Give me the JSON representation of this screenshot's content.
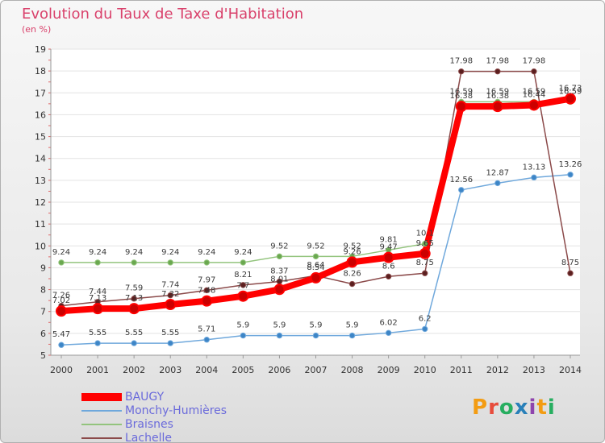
{
  "title": "Evolution du Taux de Taxe d'Habitation",
  "unit_label": "(en %)",
  "logo": {
    "text": "Proxiti",
    "colors": [
      "#f39c12",
      "#e74c3c",
      "#27ae60",
      "#2980b9",
      "#8e44ad",
      "#f39c12",
      "#27ae60"
    ]
  },
  "chart_data": {
    "type": "line",
    "title": "Evolution du Taux de Taxe d'Habitation",
    "ylabel": "(en %)",
    "xlabel": "",
    "ylim": [
      5,
      19
    ],
    "yticks": [
      5,
      6,
      7,
      8,
      9,
      10,
      11,
      12,
      13,
      14,
      15,
      16,
      17,
      18,
      19
    ],
    "x": [
      "2000",
      "2001",
      "2002",
      "2003",
      "2004",
      "2005",
      "2006",
      "2007",
      "2008",
      "2009",
      "2010",
      "2011",
      "2012",
      "2013",
      "2014"
    ],
    "grid": "horizontal",
    "legend_position": "bottom-left",
    "series": [
      {
        "name": "BAUGY",
        "color": "#ff0000",
        "marker_color": "#cc0000",
        "values": [
          7.02,
          7.13,
          7.13,
          7.32,
          7.48,
          7.7,
          8.01,
          8.54,
          9.26,
          9.47,
          9.65,
          16.38,
          16.38,
          16.44,
          16.73
        ],
        "labels": [
          "7.02",
          "7.13",
          "7.13",
          "7.32",
          "7.48",
          "7.7",
          "8.01",
          "8.54",
          "9.26",
          "9.47",
          "9.65",
          "16.38",
          "16.38",
          "16.44",
          "16.73"
        ]
      },
      {
        "name": "Monchy-Humières",
        "color": "#6fa8dc",
        "marker_color": "#3d85c6",
        "values": [
          5.47,
          5.55,
          5.55,
          5.55,
          5.71,
          5.9,
          5.9,
          5.9,
          5.9,
          6.02,
          6.2,
          12.56,
          12.87,
          13.13,
          13.26
        ],
        "labels": [
          "5.47",
          "5.55",
          "5.55",
          "5.55",
          "5.71",
          "5.9",
          "5.9",
          "5.9",
          "5.9",
          "6.02",
          "6.2",
          "12.56",
          "12.87",
          "13.13",
          "13.26"
        ]
      },
      {
        "name": "Braisnes",
        "color": "#93c47d",
        "marker_color": "#6aa84f",
        "values": [
          9.24,
          9.24,
          9.24,
          9.24,
          9.24,
          9.24,
          9.52,
          9.52,
          9.52,
          9.81,
          10.1,
          16.59,
          16.59,
          16.59,
          16.59
        ],
        "labels": [
          "9.24",
          "9.24",
          "9.24",
          "9.24",
          "9.24",
          "9.24",
          "9.52",
          "9.52",
          "9.52",
          "9.81",
          "10.1",
          "16.59",
          "16.59",
          "16.59",
          "16.59"
        ]
      },
      {
        "name": "Lachelle",
        "color": "#8b4a4a",
        "marker_color": "#5b1f1f",
        "values": [
          7.26,
          7.44,
          7.59,
          7.74,
          7.97,
          8.21,
          8.37,
          8.64,
          8.26,
          8.6,
          8.75,
          17.98,
          17.98,
          17.98,
          8.75
        ],
        "labels": [
          "7.26",
          "7.44",
          "7.59",
          "7.74",
          "7.97",
          "8.21",
          "8.37",
          "8.64",
          "8.26",
          "8.6",
          "8.75",
          "17.98",
          "17.98",
          "17.98",
          "8.75"
        ]
      }
    ]
  }
}
